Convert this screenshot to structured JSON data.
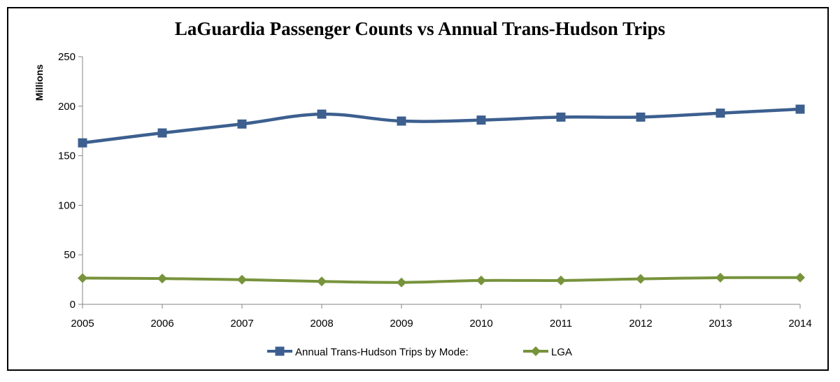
{
  "chart_data": {
    "type": "line",
    "title": "LaGuardia Passenger Counts vs Annual Trans-Hudson Trips",
    "xlabel": "",
    "ylabel": "Millions",
    "x": [
      "2005",
      "2006",
      "2007",
      "2008",
      "2009",
      "2010",
      "2011",
      "2012",
      "2013",
      "2014"
    ],
    "ylim": [
      0,
      250
    ],
    "yticks": [
      0,
      50,
      100,
      150,
      200,
      250
    ],
    "grid": false,
    "legend": "bottom",
    "series": [
      {
        "name": "Annual Trans-Hudson Trips by Mode:",
        "color": "#3C5F8F",
        "marker": "square",
        "values": [
          163,
          173,
          182,
          192,
          185,
          186,
          189,
          189,
          193,
          197
        ]
      },
      {
        "name": "LGA",
        "color": "#77933C",
        "marker": "diamond",
        "values": [
          26.5,
          26,
          24.9,
          23.1,
          22.1,
          24.1,
          24.1,
          25.7,
          26.9,
          27
        ]
      }
    ]
  }
}
